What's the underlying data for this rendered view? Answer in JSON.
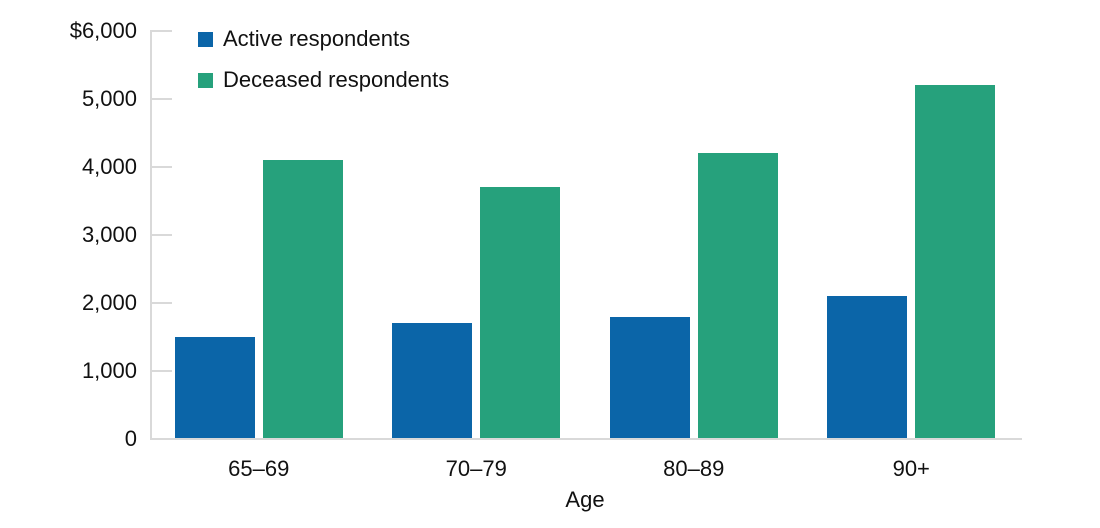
{
  "chart_data": {
    "type": "bar",
    "title": "",
    "xlabel": "Age",
    "ylabel": "",
    "categories": [
      "65–69",
      "70–79",
      "80–89",
      "90+"
    ],
    "series": [
      {
        "name": "Active respondents",
        "color": "#0b65a8",
        "values": [
          1500,
          1700,
          1800,
          2100
        ]
      },
      {
        "name": "Deceased respondents",
        "color": "#26a17c",
        "values": [
          4100,
          3700,
          4200,
          5200
        ]
      }
    ],
    "ylim": [
      0,
      6000
    ],
    "y_ticks": [
      {
        "label": "$6,000",
        "value": 6000
      },
      {
        "label": "5,000",
        "value": 5000
      },
      {
        "label": "4,000",
        "value": 4000
      },
      {
        "label": "3,000",
        "value": 3000
      },
      {
        "label": "2,000",
        "value": 2000
      },
      {
        "label": "1,000",
        "value": 1000
      },
      {
        "label": "0",
        "value": 0
      }
    ],
    "grid": false,
    "legend_position": "top-left-inside",
    "axis_color": "#d9d9d9",
    "background_color": "#ffffff",
    "text_color": "#111111"
  }
}
